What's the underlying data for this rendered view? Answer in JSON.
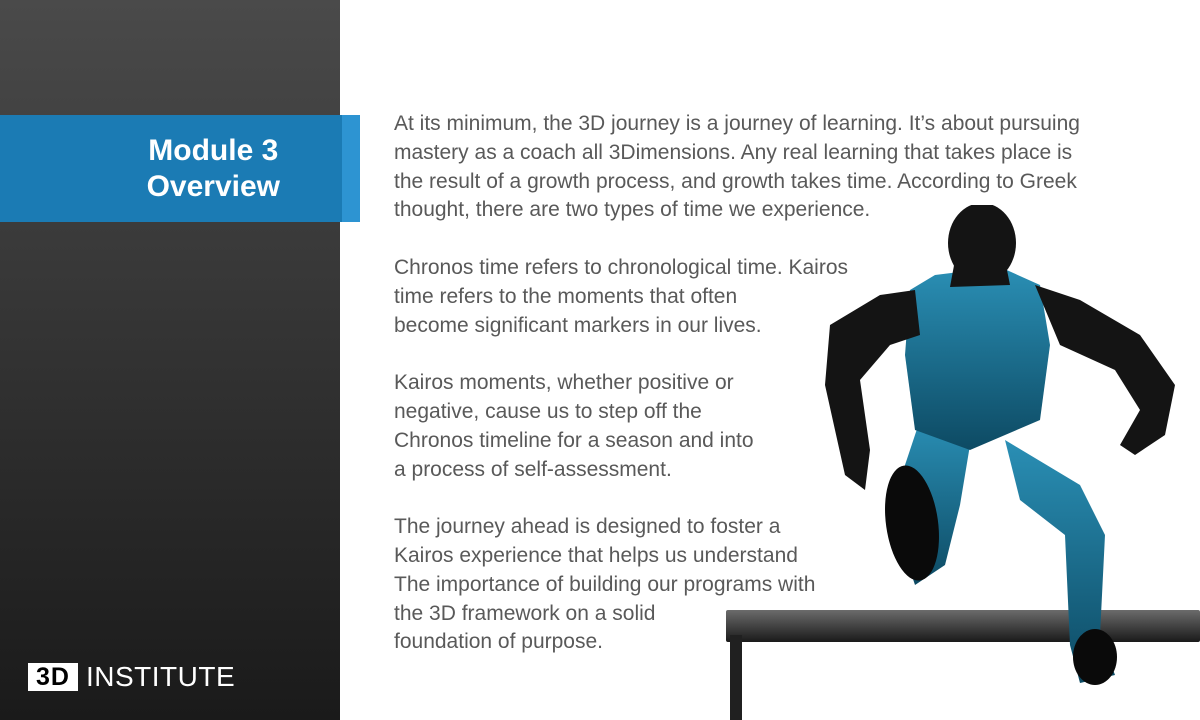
{
  "slide": {
    "title_line1": "Module 3",
    "title_line2": "Overview"
  },
  "logo": {
    "mark": "3D",
    "word": "INSTITUTE"
  },
  "body": {
    "p1": [
      "At its minimum, the 3D journey is a journey of learning. It’s about pursuing",
      "mastery as a coach all 3Dimensions. Any real learning that takes place is",
      "the result of a growth process, and growth takes time. According to Greek",
      "thought, there are two types of time we experience."
    ],
    "p2": [
      "Chronos time refers to chronological time. Kairos",
      "time refers to the moments that often",
      "become significant markers in our lives."
    ],
    "p3": [
      "Kairos moments, whether positive or",
      "negative, cause us to step off the",
      "Chronos timeline for a season and into",
      "a process of  self-assessment."
    ],
    "p4": [
      "The journey ahead is designed to foster a",
      "Kairos experience that helps us understand",
      "The importance of building our programs with",
      "the 3D framework on a solid",
      "foundation of purpose."
    ]
  },
  "colors": {
    "accent_blue": "#1b7bb4",
    "accent_light_blue": "#2d94d2",
    "sidebar_dark": "#1a1a1a",
    "body_text": "#595959",
    "athlete_kit": "#1f7fa0"
  },
  "image": {
    "icon": "hurdler-athlete-photo"
  }
}
